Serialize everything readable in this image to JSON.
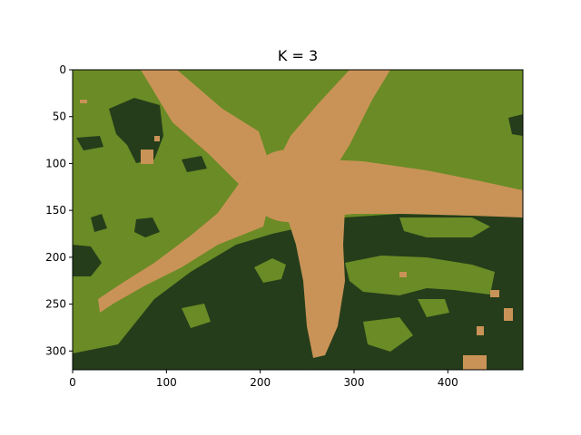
{
  "title": "K = 3",
  "palette": {
    "light_green": "#6a8b25",
    "dark_green": "#253d1b",
    "tan": "#c99357"
  },
  "axes": {
    "x_ticks": [
      "0",
      "100",
      "200",
      "300",
      "400"
    ],
    "y_ticks": [
      "0",
      "50",
      "100",
      "150",
      "200",
      "250",
      "300"
    ],
    "xlim": [
      0,
      480
    ],
    "ylim": [
      320,
      0
    ]
  }
}
